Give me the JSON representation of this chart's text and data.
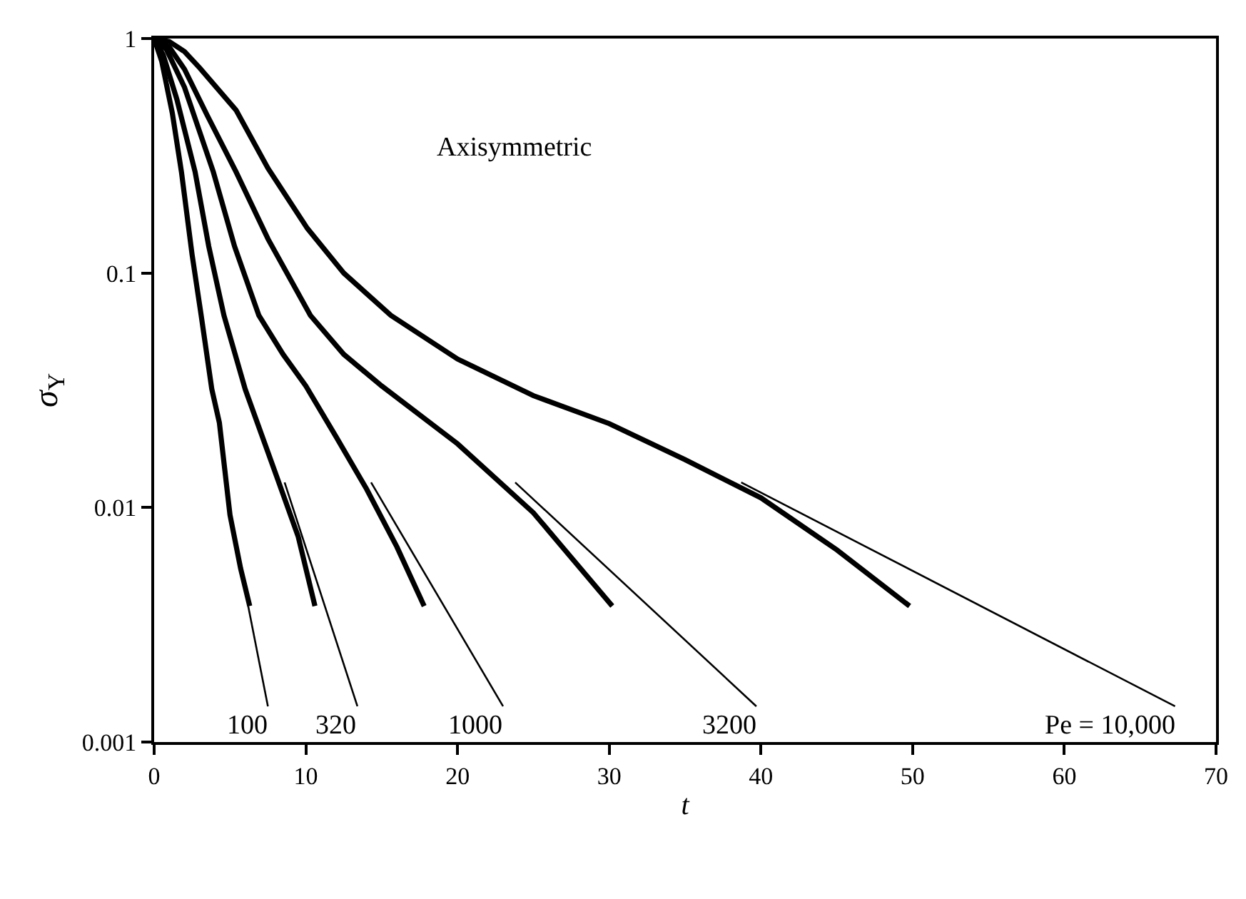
{
  "chart_data": {
    "type": "line",
    "xlabel": "t",
    "ylabel": "σ$_{Y}$",
    "log": "y",
    "xlim": [
      0,
      70
    ],
    "xticks": [
      0,
      10,
      20,
      30,
      40,
      50,
      60,
      70
    ],
    "ylim": [
      0.001,
      1
    ],
    "yticks": [
      0.001,
      0.01,
      0.1,
      1
    ],
    "marker": "none",
    "line_style": "solid",
    "series": [
      {
        "color": "#000000",
        "x": [
          0,
          1,
          2,
          3,
          5.4,
          7.5,
          10.1,
          12.5,
          15.6,
          20,
          25,
          30,
          35,
          40,
          45,
          49.8
        ],
        "values": [
          1,
          0.97,
          0.88,
          0.75,
          0.495,
          0.28,
          0.155,
          0.1,
          0.066,
          0.043,
          0.03,
          0.0228,
          0.016,
          0.011,
          0.0066,
          0.0038
        ]
      },
      {
        "color": "#000000",
        "x": [
          0,
          1,
          2,
          3.5,
          5.4,
          7.5,
          10.3,
          12.5,
          15,
          20,
          25,
          30.2
        ],
        "values": [
          1,
          0.92,
          0.74,
          0.47,
          0.27,
          0.14,
          0.066,
          0.045,
          0.033,
          0.0187,
          0.0095,
          0.0038
        ]
      },
      {
        "color": "#000000",
        "x": [
          0,
          0.8,
          2,
          3.9,
          5.3,
          6.9,
          8.5,
          10,
          12,
          14,
          16,
          17.8
        ],
        "values": [
          1,
          0.9,
          0.62,
          0.27,
          0.13,
          0.066,
          0.045,
          0.033,
          0.02,
          0.012,
          0.0068,
          0.0038
        ]
      },
      {
        "color": "#000000",
        "x": [
          0,
          0.6,
          1.5,
          2.7,
          3.6,
          4.6,
          6,
          8,
          9.5,
          10.6
        ],
        "values": [
          1,
          0.85,
          0.55,
          0.27,
          0.13,
          0.066,
          0.032,
          0.014,
          0.0075,
          0.0038
        ]
      },
      {
        "color": "#000000",
        "x": [
          0,
          0.5,
          1.2,
          1.8,
          2.5,
          3.1,
          3.8,
          4.3,
          5,
          5.7,
          6.3
        ],
        "values": [
          1,
          0.8,
          0.48,
          0.27,
          0.12,
          0.066,
          0.032,
          0.023,
          0.0093,
          0.0055,
          0.0038
        ]
      },
      {
        "color": "#000000",
        "type": "line",
        "x": [
          6.2,
          7.5
        ],
        "values": [
          0.0038,
          0.00142
        ]
      },
      {
        "color": "#000000",
        "type": "line",
        "x": [
          8.6,
          13.4
        ],
        "values": [
          0.0128,
          0.00142
        ]
      },
      {
        "color": "#000000",
        "type": "line",
        "x": [
          14.3,
          23.0
        ],
        "values": [
          0.0128,
          0.00142
        ]
      },
      {
        "color": "#000000",
        "type": "line",
        "x": [
          23.8,
          39.7
        ],
        "values": [
          0.0128,
          0.00142
        ]
      },
      {
        "color": "#000000",
        "type": "line",
        "x": [
          38.7,
          67.3
        ],
        "values": [
          0.0128,
          0.00142
        ]
      }
    ],
    "annotations": [
      "Axisymmetric",
      {
        "text": "100",
        "x": 7.5,
        "y": 0.00142
      },
      {
        "text": "320",
        "x": 13.4,
        "y": 0.00142
      },
      {
        "text": "1000",
        "x": 23.0,
        "y": 0.00142
      },
      {
        "text": "3200",
        "x": 39.7,
        "y": 0.00142
      },
      {
        "text": "Pe = 10,000",
        "x": 67.3,
        "y": 0.00142
      }
    ]
  }
}
